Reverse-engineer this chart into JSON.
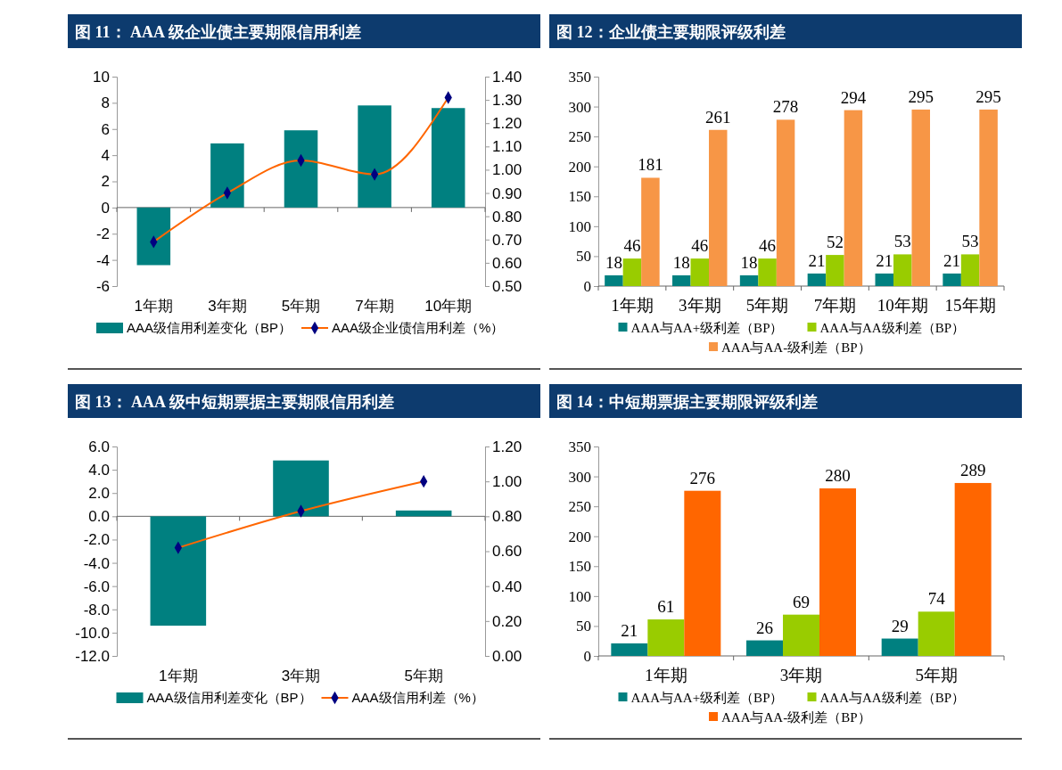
{
  "chart_data": [
    {
      "type": "bar",
      "title": "图 11： AAA 级企业债主要期限信用利差",
      "categories": [
        "1年期",
        "3年期",
        "5年期",
        "7年期",
        "10年期"
      ],
      "series": [
        {
          "name": "AAA级信用利差变化（BP）",
          "color": "#008080",
          "values": [
            -4.4,
            4.9,
            5.9,
            7.8,
            7.6
          ]
        },
        {
          "name": "AAA级企业债信用利差（%）",
          "type": "line",
          "axis": "y2",
          "color": "#ff6600",
          "marker": "diamond",
          "values": [
            0.69,
            0.9,
            1.04,
            0.98,
            1.31
          ]
        }
      ],
      "ylim": [
        -6,
        10
      ],
      "yticks": [
        -6,
        -4,
        -2,
        0,
        2,
        4,
        6,
        8,
        10
      ],
      "y2lim": [
        0.5,
        1.4
      ],
      "y2ticks": [
        {
          "value": 0.5,
          "label": "0.50"
        },
        {
          "value": 0.6,
          "label": "0.60"
        },
        {
          "value": 0.7,
          "label": "0.70"
        },
        {
          "value": 0.8,
          "label": "0.80"
        },
        {
          "value": 0.9,
          "label": "0.90"
        },
        {
          "value": 1.0,
          "label": "1.00"
        },
        {
          "value": 1.1,
          "label": "1.10"
        },
        {
          "value": 1.2,
          "label": "1.20"
        },
        {
          "value": 1.3,
          "label": "1.30"
        },
        {
          "value": 1.4,
          "label": "1.40"
        }
      ],
      "legend": "bottom"
    },
    {
      "type": "bar",
      "title": "图 12：企业债主要期限评级利差",
      "categories": [
        "1年期",
        "3年期",
        "5年期",
        "7年期",
        "10年期",
        "15年期"
      ],
      "series": [
        {
          "name": "AAA与AA+级利差（BP）",
          "color": "#008080",
          "values": [
            18,
            18,
            18,
            21,
            21,
            21
          ]
        },
        {
          "name": "AAA与AA级利差（BP）",
          "color": "#99cc00",
          "values": [
            46,
            46,
            46,
            52,
            53,
            53
          ]
        },
        {
          "name": "AAA与AA-级利差（BP）",
          "color": "#f79646",
          "values": [
            181,
            261,
            278,
            294,
            295,
            295
          ]
        }
      ],
      "ylim": [
        0,
        350
      ],
      "yticks": [
        0,
        50,
        100,
        150,
        200,
        250,
        300,
        350
      ],
      "data_labels": true,
      "legend": "bottom"
    },
    {
      "type": "bar",
      "title": "图 13： AAA 级中短期票据主要期限信用利差",
      "categories": [
        "1年期",
        "3年期",
        "5年期"
      ],
      "series": [
        {
          "name": "AAA级信用利差变化（BP）",
          "color": "#008080",
          "values": [
            -9.4,
            4.8,
            0.5
          ]
        },
        {
          "name": "AAA级信用利差（%）",
          "type": "line",
          "axis": "y2",
          "color": "#ff6600",
          "marker": "diamond",
          "values": [
            0.62,
            0.83,
            1.0
          ]
        }
      ],
      "ylim": [
        -12,
        6
      ],
      "yticks": [
        {
          "value": -12,
          "label": "-12.0"
        },
        {
          "value": -10,
          "label": "-10.0"
        },
        {
          "value": -8,
          "label": "-8.0"
        },
        {
          "value": -6,
          "label": "-6.0"
        },
        {
          "value": -4,
          "label": "-4.0"
        },
        {
          "value": -2,
          "label": "-2.0"
        },
        {
          "value": 0,
          "label": "0.0"
        },
        {
          "value": 2,
          "label": "2.0"
        },
        {
          "value": 4,
          "label": "4.0"
        },
        {
          "value": 6,
          "label": "6.0"
        }
      ],
      "y2lim": [
        0,
        1.2
      ],
      "y2ticks": [
        {
          "value": 0,
          "label": "0.00"
        },
        {
          "value": 0.2,
          "label": "0.20"
        },
        {
          "value": 0.4,
          "label": "0.40"
        },
        {
          "value": 0.6,
          "label": "0.60"
        },
        {
          "value": 0.8,
          "label": "0.80"
        },
        {
          "value": 1.0,
          "label": "1.00"
        },
        {
          "value": 1.2,
          "label": "1.20"
        }
      ],
      "legend": "bottom"
    },
    {
      "type": "bar",
      "title": "图 14：中短期票据主要期限评级利差",
      "categories": [
        "1年期",
        "3年期",
        "5年期"
      ],
      "series": [
        {
          "name": "AAA与AA+级利差（BP）",
          "color": "#008080",
          "values": [
            21,
            26,
            29
          ]
        },
        {
          "name": "AAA与AA级利差（BP）",
          "color": "#99cc00",
          "values": [
            61,
            69,
            74
          ]
        },
        {
          "name": "AAA与AA-级利差（BP）",
          "color": "#ff6600",
          "values": [
            276,
            280,
            289
          ]
        }
      ],
      "ylim": [
        0,
        350
      ],
      "yticks": [
        0,
        50,
        100,
        150,
        200,
        250,
        300,
        350
      ],
      "data_labels": true,
      "legend": "bottom"
    }
  ]
}
